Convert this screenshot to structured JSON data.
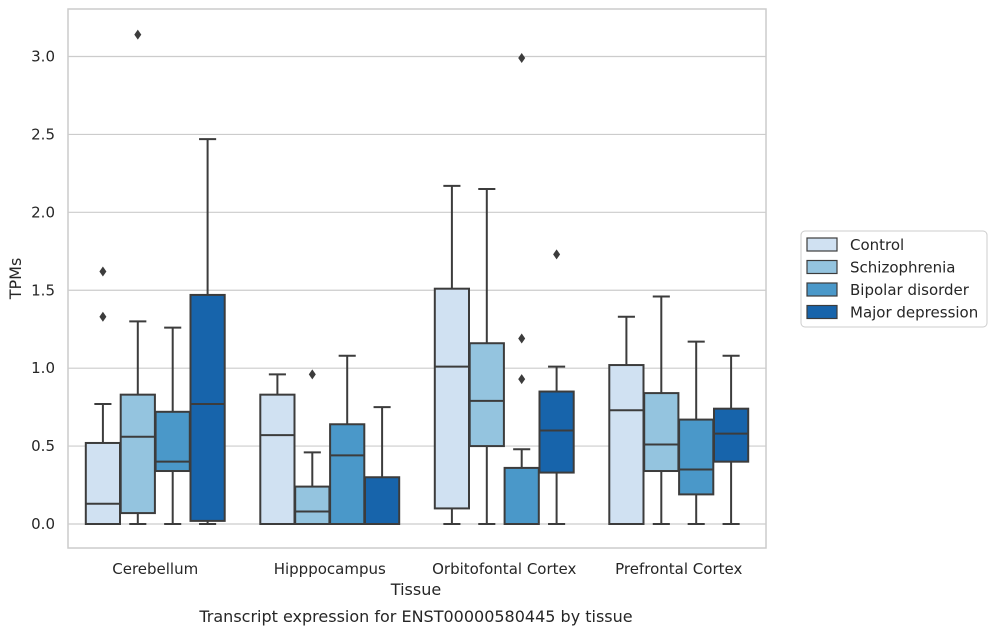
{
  "chart_data": {
    "type": "box",
    "title": "",
    "caption": "Transcript expression for ENST00000580445 by tissue",
    "xlabel": "Tissue",
    "ylabel": "TPMs",
    "ylim": [
      -0.15,
      3.3
    ],
    "yticks": [
      "0.0",
      "0.5",
      "1.0",
      "1.5",
      "2.0",
      "2.5",
      "3.0"
    ],
    "grid": true,
    "legend_position": "right",
    "categories": [
      "Cerebellum",
      "Hipppocampus",
      "Orbitofontal Cortex",
      "Prefrontal Cortex"
    ],
    "series": [
      {
        "name": "Control",
        "color": "#d0e1f2",
        "boxes": [
          {
            "min": 0.0,
            "q1": 0.0,
            "median": 0.13,
            "q3": 0.52,
            "max": 0.77,
            "outliers": [
              1.33,
              1.62
            ]
          },
          {
            "min": 0.0,
            "q1": 0.0,
            "median": 0.57,
            "q3": 0.83,
            "max": 0.96,
            "outliers": []
          },
          {
            "min": 0.0,
            "q1": 0.1,
            "median": 1.01,
            "q3": 1.51,
            "max": 2.17,
            "outliers": []
          },
          {
            "min": 0.0,
            "q1": 0.0,
            "median": 0.73,
            "q3": 1.02,
            "max": 1.33,
            "outliers": []
          }
        ]
      },
      {
        "name": "Schizophrenia",
        "color": "#94c4df",
        "boxes": [
          {
            "min": 0.0,
            "q1": 0.07,
            "median": 0.56,
            "q3": 0.83,
            "max": 1.3,
            "outliers": [
              3.14
            ]
          },
          {
            "min": 0.0,
            "q1": 0.0,
            "median": 0.08,
            "q3": 0.24,
            "max": 0.46,
            "outliers": [
              0.96
            ]
          },
          {
            "min": 0.0,
            "q1": 0.5,
            "median": 0.79,
            "q3": 1.16,
            "max": 2.15,
            "outliers": []
          },
          {
            "min": 0.0,
            "q1": 0.34,
            "median": 0.51,
            "q3": 0.84,
            "max": 1.46,
            "outliers": []
          }
        ]
      },
      {
        "name": "Bipolar disorder",
        "color": "#4a98c9",
        "boxes": [
          {
            "min": 0.0,
            "q1": 0.34,
            "median": 0.4,
            "q3": 0.72,
            "max": 1.26,
            "outliers": []
          },
          {
            "min": 0.0,
            "q1": 0.0,
            "median": 0.44,
            "q3": 0.64,
            "max": 1.08,
            "outliers": []
          },
          {
            "min": 0.0,
            "q1": 0.0,
            "median": 0.0,
            "q3": 0.36,
            "max": 0.48,
            "outliers": [
              0.93,
              1.19,
              2.99
            ]
          },
          {
            "min": 0.0,
            "q1": 0.19,
            "median": 0.35,
            "q3": 0.67,
            "max": 1.17,
            "outliers": []
          }
        ]
      },
      {
        "name": "Major depression",
        "color": "#1764ab",
        "boxes": [
          {
            "min": 0.0,
            "q1": 0.02,
            "median": 0.77,
            "q3": 1.47,
            "max": 2.47,
            "outliers": []
          },
          {
            "min": 0.0,
            "q1": 0.0,
            "median": 0.0,
            "q3": 0.3,
            "max": 0.75,
            "outliers": []
          },
          {
            "min": 0.0,
            "q1": 0.33,
            "median": 0.6,
            "q3": 0.85,
            "max": 1.01,
            "outliers": [
              1.73
            ]
          },
          {
            "min": 0.0,
            "q1": 0.4,
            "median": 0.58,
            "q3": 0.74,
            "max": 1.08,
            "outliers": []
          }
        ]
      }
    ]
  }
}
